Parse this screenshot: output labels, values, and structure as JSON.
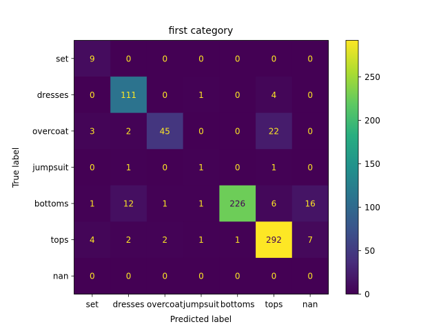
{
  "chart_data": {
    "type": "heatmap",
    "title": "first category",
    "xlabel": "Predicted label",
    "ylabel": "True label",
    "x_categories": [
      "set",
      "dresses",
      "overcoat",
      "jumpsuit",
      "bottoms",
      "tops",
      "nan"
    ],
    "y_categories": [
      "set",
      "dresses",
      "overcoat",
      "jumpsuit",
      "bottoms",
      "tops",
      "nan"
    ],
    "values": [
      [
        9,
        0,
        0,
        0,
        0,
        0,
        0
      ],
      [
        0,
        111,
        0,
        1,
        0,
        4,
        0
      ],
      [
        3,
        2,
        45,
        0,
        0,
        22,
        0
      ],
      [
        0,
        1,
        0,
        1,
        0,
        1,
        0
      ],
      [
        1,
        12,
        1,
        1,
        226,
        6,
        16
      ],
      [
        4,
        2,
        2,
        1,
        1,
        292,
        7
      ],
      [
        0,
        0,
        0,
        0,
        0,
        0,
        0
      ]
    ],
    "colormap": "viridis",
    "colorbar": {
      "range": [
        0,
        292
      ],
      "ticks": [
        0,
        50,
        100,
        150,
        200,
        250
      ]
    },
    "text_colors": {
      "light": "#fde725",
      "dark": "#440154"
    }
  }
}
